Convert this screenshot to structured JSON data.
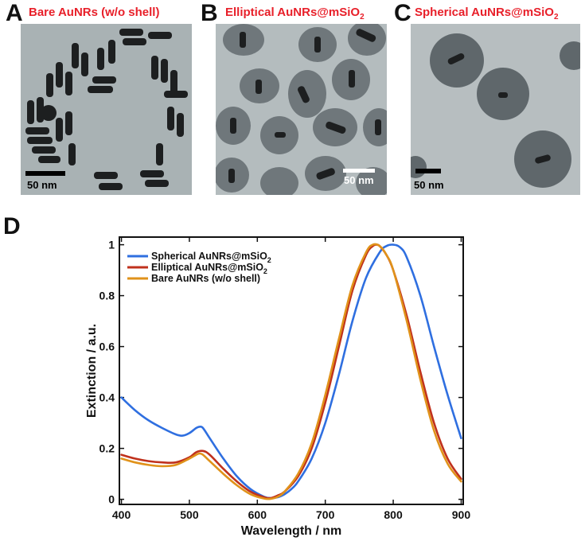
{
  "panels": [
    {
      "letter": "A",
      "title": "Bare AuNRs (w/o shell)",
      "title_main": "Bare AuNRs (w/o shell)",
      "title_sub": "",
      "scale_bar": "50 nm"
    },
    {
      "letter": "B",
      "title": "Elliptical AuNRs@mSiO2",
      "title_main": "Elliptical AuNRs@mSiO",
      "title_sub": "2",
      "scale_bar": "50 nm"
    },
    {
      "letter": "C",
      "title": "Spherical AuNRs@mSiO2",
      "title_main": "Spherical AuNRs@mSiO",
      "title_sub": "2",
      "scale_bar": "50 nm"
    }
  ],
  "chart_panel_letter": "D",
  "colors": {
    "panel_title": "#e8202a",
    "spherical": "#2f6fe0",
    "elliptical": "#c0311c",
    "bare": "#e0921a"
  },
  "chart_data": {
    "type": "line",
    "xlabel": "Wavelength / nm",
    "ylabel": "Extinction / a.u.",
    "xlim": [
      397,
      903
    ],
    "ylim": [
      -0.02,
      1.03
    ],
    "xticks": [
      "400",
      "500",
      "600",
      "700",
      "800",
      "900"
    ],
    "yticks": [
      "0",
      "0.2",
      "0.4",
      "0.6",
      "0.8",
      "1"
    ],
    "legend_position": "top-left",
    "series": [
      {
        "name": "Spherical AuNRs@mSiO",
        "name_sub": "2",
        "color": "#2f6fe0",
        "x": [
          400,
          420,
          440,
          460,
          480,
          490,
          500,
          510,
          515,
          520,
          530,
          550,
          570,
          590,
          610,
          620,
          630,
          640,
          650,
          660,
          680,
          700,
          720,
          740,
          760,
          780,
          790,
          800,
          810,
          820,
          840,
          860,
          880,
          900
        ],
        "y": [
          0.4,
          0.35,
          0.31,
          0.28,
          0.255,
          0.25,
          0.26,
          0.28,
          0.285,
          0.28,
          0.24,
          0.16,
          0.09,
          0.04,
          0.01,
          0.005,
          0.008,
          0.02,
          0.04,
          0.07,
          0.16,
          0.3,
          0.49,
          0.7,
          0.87,
          0.97,
          0.995,
          1.0,
          0.99,
          0.95,
          0.8,
          0.6,
          0.41,
          0.24
        ]
      },
      {
        "name": "Elliptical AuNRs@mSiO",
        "name_sub": "2",
        "color": "#c0311c",
        "x": [
          400,
          420,
          440,
          460,
          480,
          500,
          510,
          520,
          530,
          550,
          570,
          590,
          610,
          620,
          630,
          640,
          660,
          680,
          700,
          720,
          740,
          760,
          770,
          775,
          780,
          790,
          800,
          820,
          840,
          860,
          880,
          900
        ],
        "y": [
          0.175,
          0.16,
          0.15,
          0.145,
          0.145,
          0.165,
          0.185,
          0.19,
          0.175,
          0.12,
          0.07,
          0.03,
          0.008,
          0.005,
          0.015,
          0.03,
          0.09,
          0.2,
          0.38,
          0.6,
          0.82,
          0.96,
          0.995,
          1.0,
          0.995,
          0.96,
          0.9,
          0.72,
          0.5,
          0.3,
          0.16,
          0.08
        ]
      },
      {
        "name": "Bare AuNRs (w/o shell)",
        "name_sub": "",
        "color": "#e0921a",
        "x": [
          400,
          420,
          440,
          460,
          480,
          500,
          510,
          515,
          520,
          530,
          550,
          570,
          590,
          610,
          620,
          630,
          640,
          660,
          680,
          700,
          720,
          740,
          760,
          770,
          780,
          790,
          800,
          820,
          840,
          860,
          880,
          900
        ],
        "y": [
          0.16,
          0.145,
          0.135,
          0.13,
          0.135,
          0.16,
          0.175,
          0.18,
          0.175,
          0.15,
          0.1,
          0.055,
          0.02,
          0.003,
          0.002,
          0.01,
          0.03,
          0.1,
          0.22,
          0.41,
          0.63,
          0.84,
          0.97,
          1.0,
          0.995,
          0.96,
          0.9,
          0.7,
          0.47,
          0.27,
          0.14,
          0.07
        ]
      }
    ]
  }
}
